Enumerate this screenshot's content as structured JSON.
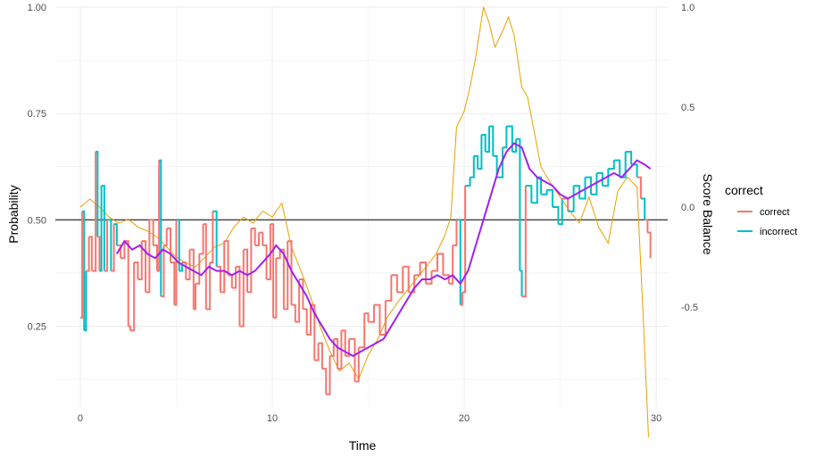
{
  "chart_data": {
    "type": "line",
    "xlabel": "Time",
    "ylabel": "Probability",
    "y2label": "Score Balance",
    "xlim": [
      -1.3,
      30.6
    ],
    "ylim": [
      0.06,
      1.0
    ],
    "y2lim": [
      -1.0,
      1.0
    ],
    "xticks": [
      0,
      10,
      20,
      30
    ],
    "yticks": [
      0.25,
      0.5,
      0.75,
      1.0
    ],
    "yticklabels": [
      "0.25",
      "0.50",
      "0.75",
      "1.00"
    ],
    "y2ticks": [
      -0.5,
      0.0,
      0.5,
      1.0
    ],
    "y2ticklabels": [
      "-0.5",
      "0.0",
      "0.5",
      "1.0"
    ],
    "hline": 0.5,
    "grid": true,
    "legend": {
      "title": "correct",
      "position": "right",
      "entries": [
        {
          "label": "correct",
          "color": "#F8766D"
        },
        {
          "label": "incorrect",
          "color": "#00BFC4"
        }
      ]
    },
    "colors": {
      "correct": "#F8766D",
      "incorrect": "#00BFC4",
      "score_balance": "#E6A100",
      "smoothed": "#A020F0",
      "hline": "#000000",
      "grid": "#EBEBEB"
    },
    "series": [
      {
        "key": "probability",
        "axis": "left",
        "points": [
          [
            0.0,
            0.27,
            "correct"
          ],
          [
            0.1,
            0.52,
            "incorrect"
          ],
          [
            0.2,
            0.24,
            "incorrect"
          ],
          [
            0.3,
            0.38,
            "correct"
          ],
          [
            0.45,
            0.46,
            "correct"
          ],
          [
            0.6,
            0.38,
            "correct"
          ],
          [
            0.8,
            0.66,
            "incorrect"
          ],
          [
            0.9,
            0.46,
            "correct"
          ],
          [
            1.0,
            0.38,
            "incorrect"
          ],
          [
            1.1,
            0.58,
            "incorrect"
          ],
          [
            1.25,
            0.38,
            "correct"
          ],
          [
            1.4,
            0.5,
            "incorrect"
          ],
          [
            1.6,
            0.38,
            "correct"
          ],
          [
            1.75,
            0.49,
            "incorrect"
          ],
          [
            1.9,
            0.44,
            "correct"
          ],
          [
            2.1,
            0.41,
            "correct"
          ],
          [
            2.3,
            0.45,
            "correct"
          ],
          [
            2.5,
            0.25,
            "correct"
          ],
          [
            2.6,
            0.24,
            "correct"
          ],
          [
            2.8,
            0.4,
            "correct"
          ],
          [
            3.0,
            0.36,
            "correct"
          ],
          [
            3.2,
            0.45,
            "correct"
          ],
          [
            3.4,
            0.33,
            "correct"
          ],
          [
            3.6,
            0.5,
            "correct"
          ],
          [
            3.8,
            0.44,
            "correct"
          ],
          [
            4.0,
            0.38,
            "correct"
          ],
          [
            4.1,
            0.64,
            "incorrect"
          ],
          [
            4.2,
            0.32,
            "correct"
          ],
          [
            4.35,
            0.44,
            "correct"
          ],
          [
            4.5,
            0.48,
            "correct"
          ],
          [
            4.7,
            0.4,
            "correct"
          ],
          [
            4.9,
            0.3,
            "correct"
          ],
          [
            5.0,
            0.5,
            "incorrect"
          ],
          [
            5.15,
            0.38,
            "incorrect"
          ],
          [
            5.3,
            0.4,
            "correct"
          ],
          [
            5.5,
            0.36,
            "correct"
          ],
          [
            5.7,
            0.43,
            "correct"
          ],
          [
            5.9,
            0.29,
            "correct"
          ],
          [
            6.0,
            0.35,
            "correct"
          ],
          [
            6.2,
            0.42,
            "correct"
          ],
          [
            6.4,
            0.49,
            "correct"
          ],
          [
            6.55,
            0.29,
            "correct"
          ],
          [
            6.75,
            0.4,
            "correct"
          ],
          [
            6.9,
            0.52,
            "incorrect"
          ],
          [
            7.1,
            0.39,
            "correct"
          ],
          [
            7.3,
            0.33,
            "correct"
          ],
          [
            7.5,
            0.45,
            "correct"
          ],
          [
            7.7,
            0.37,
            "correct"
          ],
          [
            7.9,
            0.34,
            "correct"
          ],
          [
            8.1,
            0.39,
            "correct"
          ],
          [
            8.3,
            0.25,
            "correct"
          ],
          [
            8.5,
            0.43,
            "correct"
          ],
          [
            8.7,
            0.33,
            "correct"
          ],
          [
            8.9,
            0.48,
            "correct"
          ],
          [
            9.1,
            0.44,
            "correct"
          ],
          [
            9.3,
            0.47,
            "correct"
          ],
          [
            9.5,
            0.44,
            "correct"
          ],
          [
            9.7,
            0.36,
            "correct"
          ],
          [
            9.9,
            0.49,
            "correct"
          ],
          [
            10.05,
            0.27,
            "correct"
          ],
          [
            10.2,
            0.41,
            "correct"
          ],
          [
            10.4,
            0.43,
            "correct"
          ],
          [
            10.6,
            0.29,
            "correct"
          ],
          [
            10.8,
            0.45,
            "correct"
          ],
          [
            11.0,
            0.3,
            "correct"
          ],
          [
            11.2,
            0.26,
            "correct"
          ],
          [
            11.4,
            0.36,
            "correct"
          ],
          [
            11.6,
            0.29,
            "correct"
          ],
          [
            11.8,
            0.23,
            "correct"
          ],
          [
            12.0,
            0.3,
            "correct"
          ],
          [
            12.2,
            0.17,
            "correct"
          ],
          [
            12.4,
            0.21,
            "correct"
          ],
          [
            12.6,
            0.15,
            "correct"
          ],
          [
            12.8,
            0.09,
            "correct"
          ],
          [
            13.0,
            0.18,
            "correct"
          ],
          [
            13.2,
            0.22,
            "correct"
          ],
          [
            13.4,
            0.15,
            "correct"
          ],
          [
            13.6,
            0.24,
            "correct"
          ],
          [
            13.8,
            0.18,
            "correct"
          ],
          [
            14.0,
            0.22,
            "correct"
          ],
          [
            14.3,
            0.12,
            "correct"
          ],
          [
            14.5,
            0.2,
            "correct"
          ],
          [
            14.8,
            0.28,
            "correct"
          ],
          [
            15.0,
            0.26,
            "correct"
          ],
          [
            15.3,
            0.3,
            "correct"
          ],
          [
            15.6,
            0.23,
            "correct"
          ],
          [
            15.9,
            0.31,
            "correct"
          ],
          [
            16.2,
            0.37,
            "correct"
          ],
          [
            16.5,
            0.33,
            "correct"
          ],
          [
            16.8,
            0.39,
            "correct"
          ],
          [
            17.1,
            0.33,
            "correct"
          ],
          [
            17.4,
            0.37,
            "correct"
          ],
          [
            17.7,
            0.4,
            "correct"
          ],
          [
            18.0,
            0.35,
            "correct"
          ],
          [
            18.3,
            0.38,
            "correct"
          ],
          [
            18.6,
            0.42,
            "correct"
          ],
          [
            18.9,
            0.37,
            "correct"
          ],
          [
            19.2,
            0.35,
            "correct"
          ],
          [
            19.4,
            0.44,
            "correct"
          ],
          [
            19.6,
            0.5,
            "incorrect"
          ],
          [
            19.8,
            0.3,
            "correct"
          ],
          [
            19.9,
            0.33,
            "correct"
          ],
          [
            20.05,
            0.58,
            "incorrect"
          ],
          [
            20.3,
            0.6,
            "incorrect"
          ],
          [
            20.5,
            0.65,
            "incorrect"
          ],
          [
            20.7,
            0.62,
            "incorrect"
          ],
          [
            20.9,
            0.7,
            "incorrect"
          ],
          [
            21.1,
            0.66,
            "incorrect"
          ],
          [
            21.3,
            0.72,
            "incorrect"
          ],
          [
            21.5,
            0.65,
            "incorrect"
          ],
          [
            21.7,
            0.6,
            "incorrect"
          ],
          [
            22.0,
            0.67,
            "incorrect"
          ],
          [
            22.2,
            0.72,
            "incorrect"
          ],
          [
            22.5,
            0.66,
            "incorrect"
          ],
          [
            22.7,
            0.69,
            "incorrect"
          ],
          [
            22.9,
            0.38,
            "incorrect"
          ],
          [
            23.0,
            0.32,
            "correct"
          ],
          [
            23.2,
            0.58,
            "incorrect"
          ],
          [
            23.5,
            0.54,
            "incorrect"
          ],
          [
            23.8,
            0.6,
            "incorrect"
          ],
          [
            24.0,
            0.56,
            "incorrect"
          ],
          [
            24.3,
            0.57,
            "incorrect"
          ],
          [
            24.6,
            0.53,
            "incorrect"
          ],
          [
            24.9,
            0.49,
            "incorrect"
          ],
          [
            25.1,
            0.55,
            "correct"
          ],
          [
            25.4,
            0.52,
            "incorrect"
          ],
          [
            25.7,
            0.58,
            "incorrect"
          ],
          [
            26.0,
            0.55,
            "incorrect"
          ],
          [
            26.3,
            0.6,
            "incorrect"
          ],
          [
            26.6,
            0.56,
            "incorrect"
          ],
          [
            26.9,
            0.61,
            "incorrect"
          ],
          [
            27.2,
            0.58,
            "incorrect"
          ],
          [
            27.5,
            0.62,
            "incorrect"
          ],
          [
            27.8,
            0.64,
            "incorrect"
          ],
          [
            28.1,
            0.6,
            "incorrect"
          ],
          [
            28.4,
            0.66,
            "incorrect"
          ],
          [
            28.7,
            0.63,
            "incorrect"
          ],
          [
            29.0,
            0.6,
            "correct"
          ],
          [
            29.2,
            0.55,
            "incorrect"
          ],
          [
            29.4,
            0.5,
            "correct"
          ],
          [
            29.55,
            0.47,
            "correct"
          ],
          [
            29.7,
            0.41,
            "correct"
          ]
        ]
      },
      {
        "key": "score_balance",
        "axis": "right",
        "x": [
          0.0,
          0.5,
          1.0,
          1.5,
          2.0,
          2.5,
          3.0,
          3.5,
          4.0,
          4.5,
          5.0,
          5.5,
          6.0,
          6.5,
          7.0,
          7.5,
          8.0,
          8.5,
          9.0,
          9.5,
          10.0,
          10.5,
          11.0,
          11.5,
          12.0,
          12.5,
          13.0,
          13.5,
          14.0,
          14.5,
          15.0,
          15.5,
          16.0,
          16.5,
          17.0,
          17.5,
          18.0,
          18.5,
          19.0,
          19.3,
          19.6,
          20.0,
          20.3,
          20.6,
          21.0,
          21.3,
          21.6,
          22.0,
          22.3,
          22.6,
          23.0,
          23.3,
          23.6,
          24.0,
          24.5,
          25.0,
          25.5,
          26.0,
          26.5,
          27.0,
          27.5,
          28.0,
          28.5,
          29.0,
          29.3,
          29.6
        ],
        "values": [
          0.0,
          0.04,
          0.0,
          -0.05,
          -0.08,
          -0.06,
          -0.1,
          -0.12,
          -0.15,
          -0.2,
          -0.25,
          -0.28,
          -0.3,
          -0.25,
          -0.2,
          -0.18,
          -0.1,
          -0.05,
          -0.08,
          -0.02,
          -0.05,
          0.02,
          -0.2,
          -0.32,
          -0.45,
          -0.6,
          -0.72,
          -0.82,
          -0.78,
          -0.86,
          -0.74,
          -0.66,
          -0.55,
          -0.48,
          -0.42,
          -0.36,
          -0.3,
          -0.24,
          -0.14,
          -0.05,
          0.4,
          0.48,
          0.6,
          0.75,
          1.0,
          0.92,
          0.8,
          0.88,
          0.95,
          0.86,
          0.6,
          0.55,
          0.4,
          0.2,
          0.12,
          0.05,
          -0.02,
          -0.08,
          0.05,
          -0.1,
          -0.18,
          0.08,
          0.15,
          0.1,
          -0.5,
          -1.15
        ]
      },
      {
        "key": "smoothed",
        "axis": "left",
        "x": [
          1.9,
          2.3,
          2.7,
          3.1,
          3.5,
          3.9,
          4.3,
          4.7,
          5.1,
          5.5,
          5.9,
          6.3,
          6.7,
          7.1,
          7.5,
          7.9,
          8.3,
          8.7,
          9.1,
          9.5,
          9.9,
          10.2,
          10.6,
          11.0,
          11.4,
          11.8,
          12.2,
          12.6,
          13.0,
          13.4,
          13.8,
          14.2,
          14.6,
          15.0,
          15.4,
          15.8,
          16.2,
          16.6,
          17.0,
          17.4,
          17.8,
          18.2,
          18.6,
          19.0,
          19.4,
          19.8,
          20.2,
          20.6,
          21.0,
          21.4,
          21.8,
          22.2,
          22.6,
          23.0,
          23.4,
          23.8,
          24.2,
          24.6,
          25.0,
          25.4,
          25.8,
          26.2,
          26.6,
          27.0,
          27.4,
          27.8,
          28.2,
          28.6,
          29.0,
          29.4,
          29.7
        ],
        "values": [
          0.42,
          0.45,
          0.43,
          0.44,
          0.42,
          0.41,
          0.43,
          0.42,
          0.4,
          0.39,
          0.38,
          0.37,
          0.39,
          0.38,
          0.38,
          0.37,
          0.38,
          0.37,
          0.38,
          0.4,
          0.42,
          0.44,
          0.42,
          0.38,
          0.35,
          0.32,
          0.28,
          0.25,
          0.22,
          0.2,
          0.19,
          0.18,
          0.19,
          0.2,
          0.21,
          0.22,
          0.25,
          0.28,
          0.31,
          0.34,
          0.36,
          0.36,
          0.37,
          0.36,
          0.37,
          0.35,
          0.38,
          0.44,
          0.5,
          0.56,
          0.62,
          0.66,
          0.68,
          0.67,
          0.62,
          0.6,
          0.59,
          0.58,
          0.56,
          0.55,
          0.56,
          0.57,
          0.58,
          0.59,
          0.6,
          0.61,
          0.6,
          0.62,
          0.64,
          0.63,
          0.62
        ]
      }
    ]
  }
}
